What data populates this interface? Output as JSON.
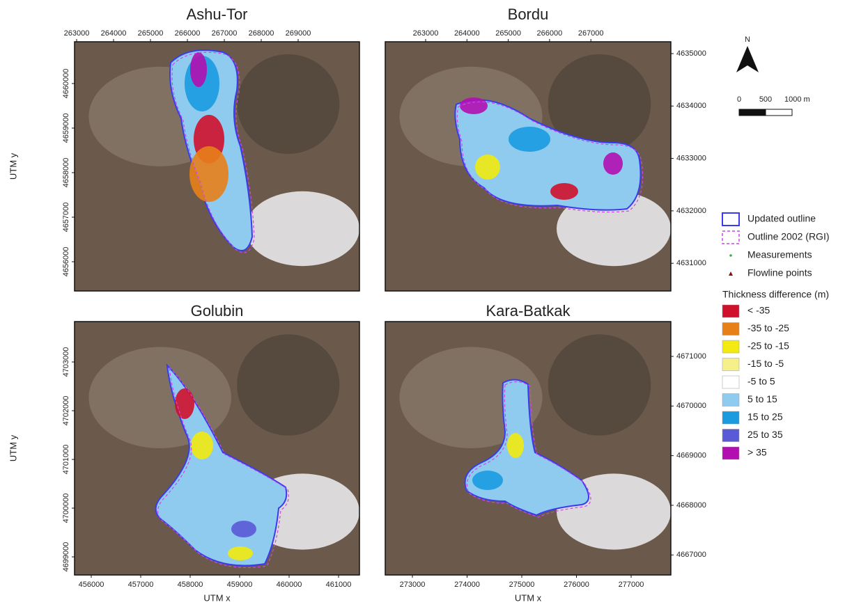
{
  "panels": [
    {
      "title": "Ashu-Tor",
      "x_ticks": [
        "263000",
        "264000",
        "265000",
        "266000",
        "267000",
        "268000",
        "269000"
      ],
      "y_ticks": [
        "4660000",
        "4659000",
        "4658000",
        "4657000",
        "4656000"
      ]
    },
    {
      "title": "Bordu",
      "x_ticks": [
        "263000",
        "264000",
        "265000",
        "266000",
        "267000"
      ],
      "y_ticks": [
        "4635000",
        "4634000",
        "4633000",
        "4632000",
        "4631000"
      ]
    },
    {
      "title": "Golubin",
      "x_ticks": [
        "456000",
        "457000",
        "458000",
        "459000",
        "460000",
        "461000"
      ],
      "y_ticks": [
        "4703000",
        "4702000",
        "4701000",
        "4700000",
        "4699000"
      ]
    },
    {
      "title": "Kara-Batkak",
      "x_ticks": [
        "273000",
        "274000",
        "275000",
        "276000",
        "277000"
      ],
      "y_ticks": [
        "4671000",
        "4670000",
        "4669000",
        "4668000",
        "4667000"
      ]
    }
  ],
  "axis_labels": {
    "x": "UTM x",
    "y": "UTM y"
  },
  "north": "N",
  "scale_bar": [
    "0",
    "500",
    "1000 m"
  ],
  "legend": {
    "items": [
      "Updated outline",
      "Outline 2002 (RGI)",
      "Measurements",
      "Flowline points"
    ],
    "thickness_title": "Thickness difference (m)",
    "classes": [
      {
        "label": "< -35",
        "color": "#d0112b"
      },
      {
        "label": "-35 to -25",
        "color": "#e8801a"
      },
      {
        "label": "-25 to -15",
        "color": "#f2ea10"
      },
      {
        "label": "-15 to -5",
        "color": "#f6f08a"
      },
      {
        "label": "-5 to 5",
        "color": "#ffffff"
      },
      {
        "label": "5 to 15",
        "color": "#8ecbee"
      },
      {
        "label": "15 to 25",
        "color": "#1a9be0"
      },
      {
        "label": "25 to 35",
        "color": "#5a5ad6"
      },
      {
        "label": "> 35",
        "color": "#b30fb0"
      }
    ]
  }
}
